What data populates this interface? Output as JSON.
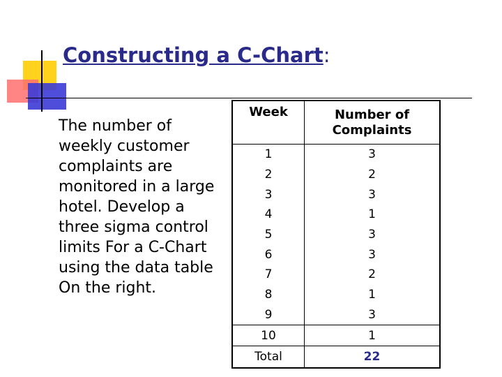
{
  "title": {
    "main": "Constructing a C-Chart",
    "suffix": ":"
  },
  "description": "The number of weekly customer complaints are monitored in a large hotel. Develop a three sigma control limits For a C-Chart using the data table On the right.",
  "table": {
    "headers": [
      "Week",
      "Number of Complaints"
    ],
    "rows": [
      [
        "1",
        "3"
      ],
      [
        "2",
        "2"
      ],
      [
        "3",
        "3"
      ],
      [
        "4",
        "1"
      ],
      [
        "5",
        "3"
      ],
      [
        "6",
        "3"
      ],
      [
        "7",
        "2"
      ],
      [
        "8",
        "1"
      ],
      [
        "9",
        "3"
      ],
      [
        "10",
        "1"
      ]
    ],
    "total_label": "Total",
    "total_value": "22"
  },
  "colors": {
    "title": "#2A2A8A",
    "accent_yellow": "#FFD21E",
    "accent_red": "#FF6E6E",
    "accent_blue": "#3B3BD6"
  }
}
